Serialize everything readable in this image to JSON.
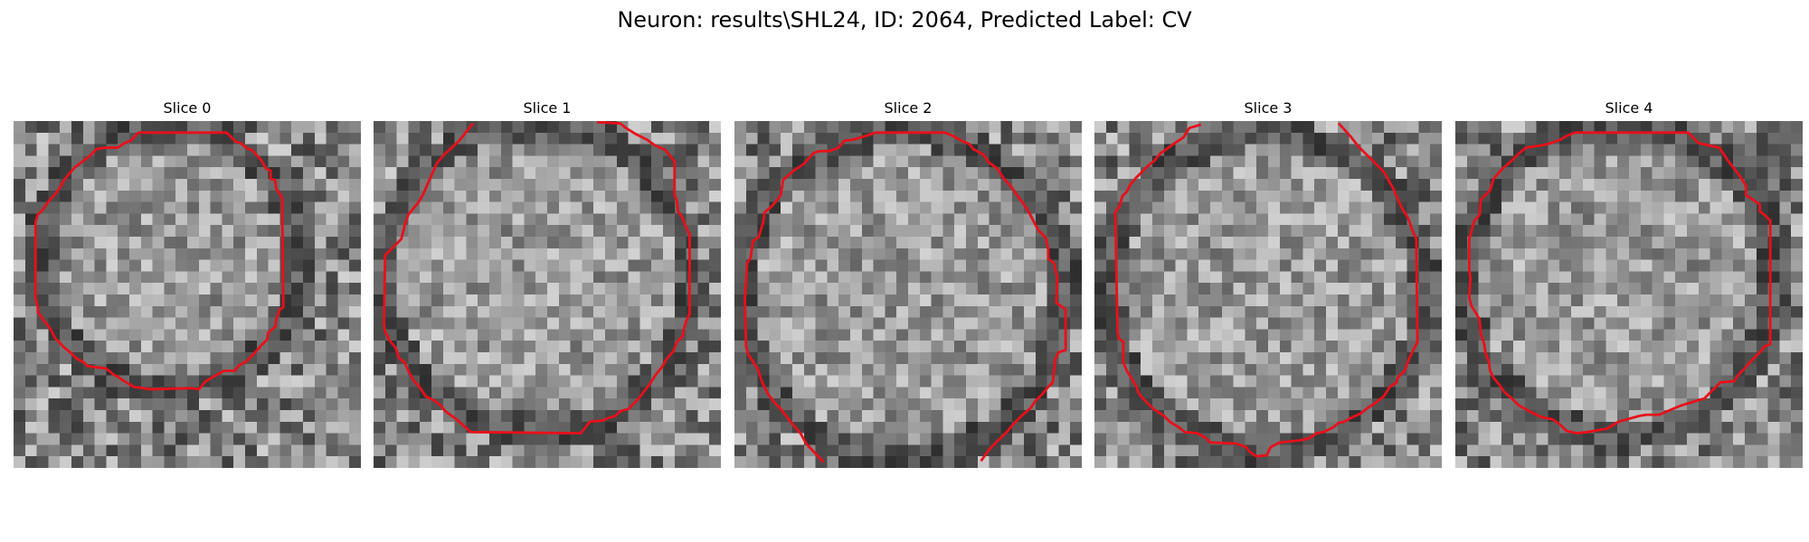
{
  "figure": {
    "title": "Neuron: results\\SHL24, ID: 2064, Predicted Label: CV"
  },
  "panels": [
    {
      "title": "Slice 0"
    },
    {
      "title": "Slice 1"
    },
    {
      "title": "Slice 2"
    },
    {
      "title": "Slice 3"
    },
    {
      "title": "Slice 4"
    }
  ],
  "colors": {
    "contour": "#e8101a",
    "background": "#ffffff",
    "text": "#000000"
  }
}
